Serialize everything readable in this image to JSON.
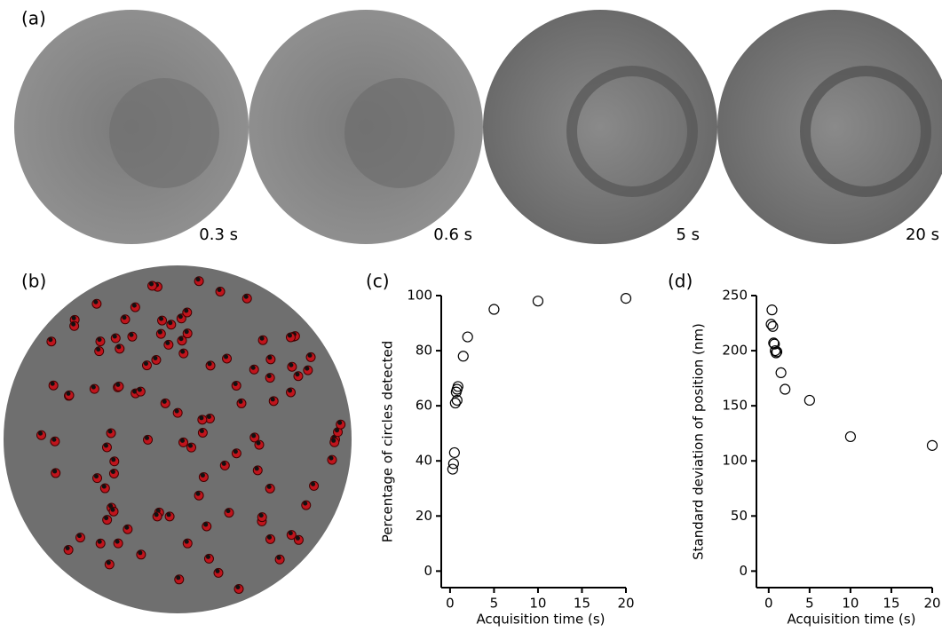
{
  "panels": [
    "(a)",
    "(b)",
    "(c)",
    "(d)"
  ],
  "image_captions": [
    "0.3 s",
    "0.6 s",
    "5 s",
    "20 s"
  ],
  "chart_data": [
    {
      "type": "scatter",
      "xlabel": "Acquisition time (s)",
      "ylabel": "Percentage of circles detected",
      "x": [
        0.3,
        0.4,
        0.5,
        0.6,
        0.8,
        0.7,
        0.8,
        0.9,
        1.5,
        2,
        5,
        10,
        20
      ],
      "y": [
        37,
        39,
        43,
        61,
        62,
        65,
        66,
        67,
        78,
        85,
        95,
        98,
        99
      ],
      "xlim": [
        -1,
        20
      ],
      "ylim": [
        -6,
        100
      ],
      "xticks": [
        0,
        5,
        10,
        15,
        20
      ],
      "yticks": [
        0,
        20,
        40,
        60,
        80,
        100
      ],
      "color": "#000000"
    },
    {
      "type": "scatter",
      "xlabel": "Acquisition time (s)",
      "ylabel": "Standard deviation of position (nm)",
      "x": [
        0.3,
        0.4,
        0.5,
        0.6,
        0.7,
        0.8,
        0.9,
        1,
        1.5,
        2,
        5,
        10,
        20
      ],
      "y": [
        224,
        237,
        222,
        207,
        206,
        200,
        198,
        199,
        180,
        165,
        155,
        122,
        114
      ],
      "xlim": [
        -1.5,
        20
      ],
      "ylim": [
        -15,
        250
      ],
      "xticks": [
        0,
        5,
        10,
        15,
        20
      ],
      "yticks": [
        0,
        50,
        100,
        150,
        200,
        250
      ],
      "color": "#000000"
    }
  ]
}
